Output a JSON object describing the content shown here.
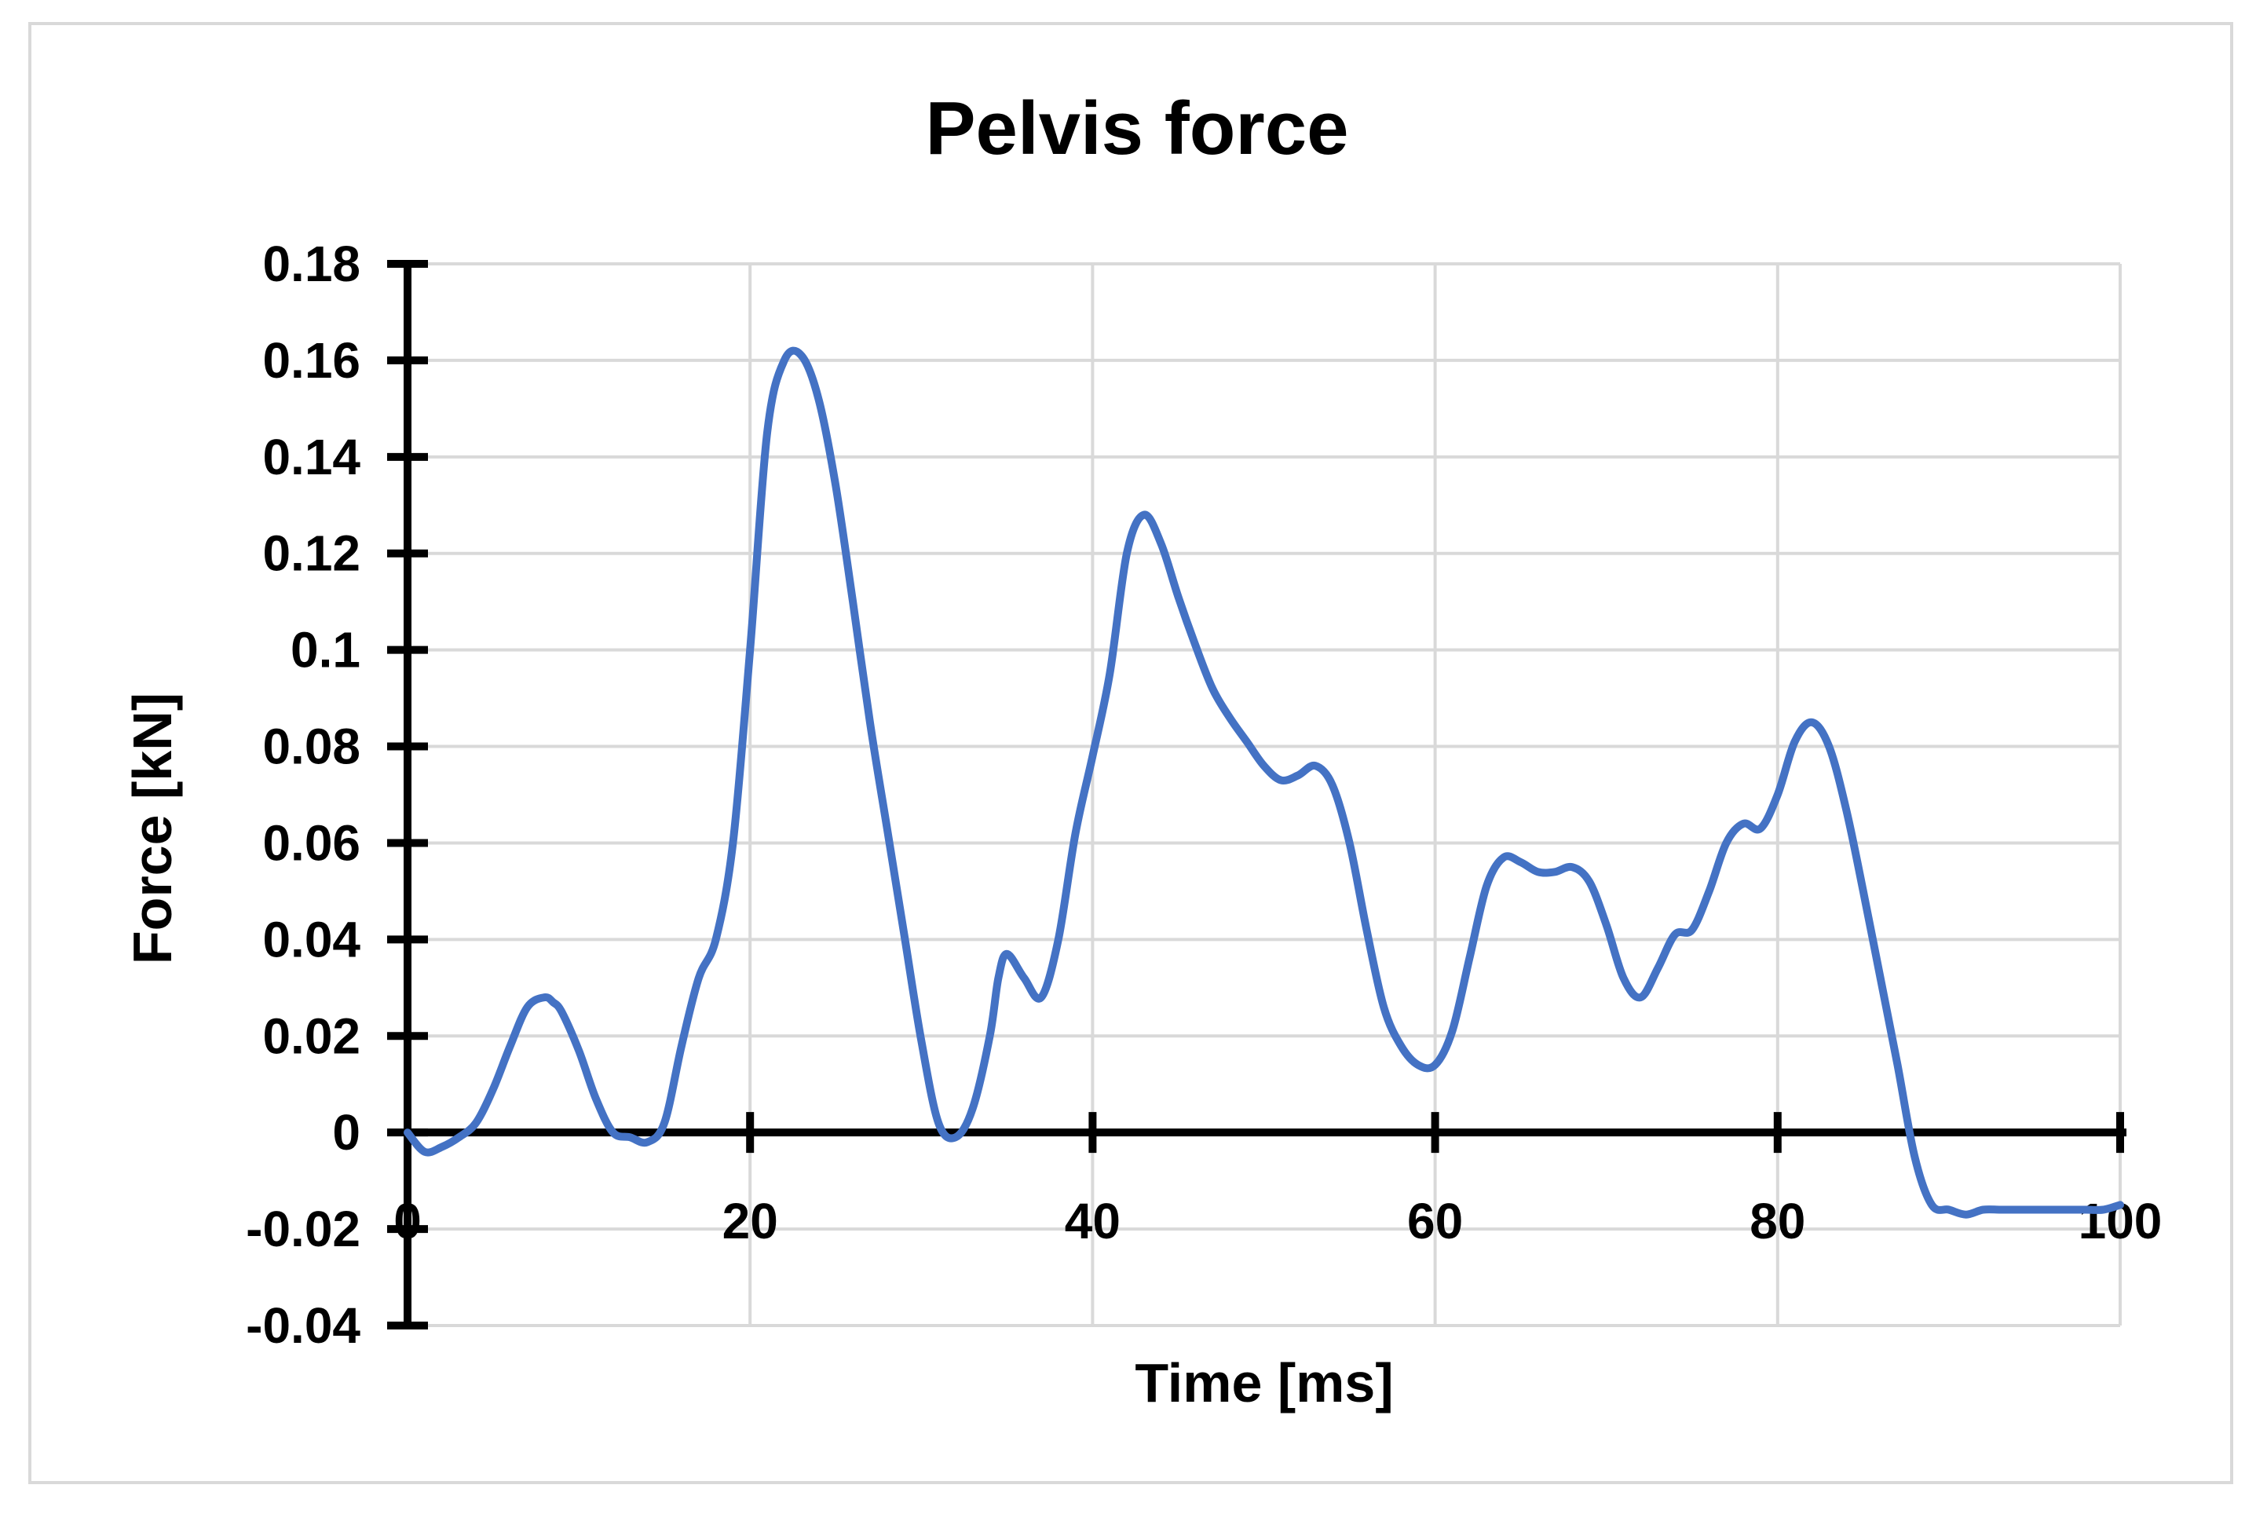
{
  "chart_data": {
    "type": "line",
    "title": "Pelvis force",
    "xlabel": "Time [ms]",
    "ylabel": "Force [kN]",
    "xlim": [
      0,
      100
    ],
    "ylim": [
      -0.04,
      0.18
    ],
    "x_ticks": [
      "0",
      "20",
      "40",
      "60",
      "80",
      "100"
    ],
    "y_ticks": [
      "-0.04",
      "-0.02",
      "0",
      "0.02",
      "0.04",
      "0.06",
      "0.08",
      "0.1",
      "0.12",
      "0.14",
      "0.16",
      "0.18"
    ],
    "grid": true,
    "legend": "none",
    "series_color": "#4472c4",
    "series": [
      {
        "x": [
          0,
          1,
          2,
          3,
          4,
          5,
          6,
          7,
          8,
          8.5,
          9,
          10,
          11,
          12,
          13,
          14,
          15,
          16,
          17,
          18,
          19,
          20,
          21,
          22,
          23,
          24,
          25,
          26,
          27,
          28,
          29,
          30,
          31,
          32,
          33,
          34,
          34.5,
          35,
          36,
          37,
          38,
          39,
          40,
          41,
          42,
          43,
          44,
          45,
          46,
          47,
          48,
          49,
          50,
          51,
          52,
          53,
          54,
          55,
          56,
          57,
          58,
          59,
          60,
          61,
          62,
          63,
          64,
          65,
          66,
          67,
          68,
          69,
          70,
          71,
          72,
          73,
          74,
          75,
          76,
          77,
          78,
          79,
          80,
          81,
          82,
          83,
          84,
          85,
          86,
          87,
          88,
          89,
          90,
          91,
          92,
          93,
          94,
          95,
          96,
          97,
          98,
          99,
          100
        ],
        "y": [
          0.0,
          -0.004,
          -0.003,
          -0.001,
          0.002,
          0.009,
          0.018,
          0.026,
          0.028,
          0.027,
          0.025,
          0.017,
          0.007,
          0.0,
          -0.001,
          -0.002,
          0.002,
          0.018,
          0.032,
          0.04,
          0.06,
          0.1,
          0.145,
          0.16,
          0.161,
          0.152,
          0.134,
          0.11,
          0.085,
          0.063,
          0.041,
          0.019,
          0.002,
          -0.001,
          0.005,
          0.02,
          0.032,
          0.037,
          0.032,
          0.028,
          0.04,
          0.062,
          0.078,
          0.095,
          0.12,
          0.128,
          0.122,
          0.111,
          0.101,
          0.092,
          0.086,
          0.081,
          0.076,
          0.073,
          0.074,
          0.076,
          0.072,
          0.06,
          0.042,
          0.026,
          0.018,
          0.014,
          0.014,
          0.021,
          0.036,
          0.051,
          0.057,
          0.056,
          0.054,
          0.054,
          0.055,
          0.052,
          0.043,
          0.032,
          0.028,
          0.034,
          0.041,
          0.042,
          0.05,
          0.06,
          0.064,
          0.063,
          0.07,
          0.081,
          0.085,
          0.08,
          0.067,
          0.05,
          0.032,
          0.014,
          -0.005,
          -0.015,
          -0.016,
          -0.017,
          -0.016,
          -0.016,
          -0.016,
          -0.016,
          -0.016,
          -0.016,
          -0.016,
          -0.016,
          -0.015
        ]
      }
    ]
  }
}
